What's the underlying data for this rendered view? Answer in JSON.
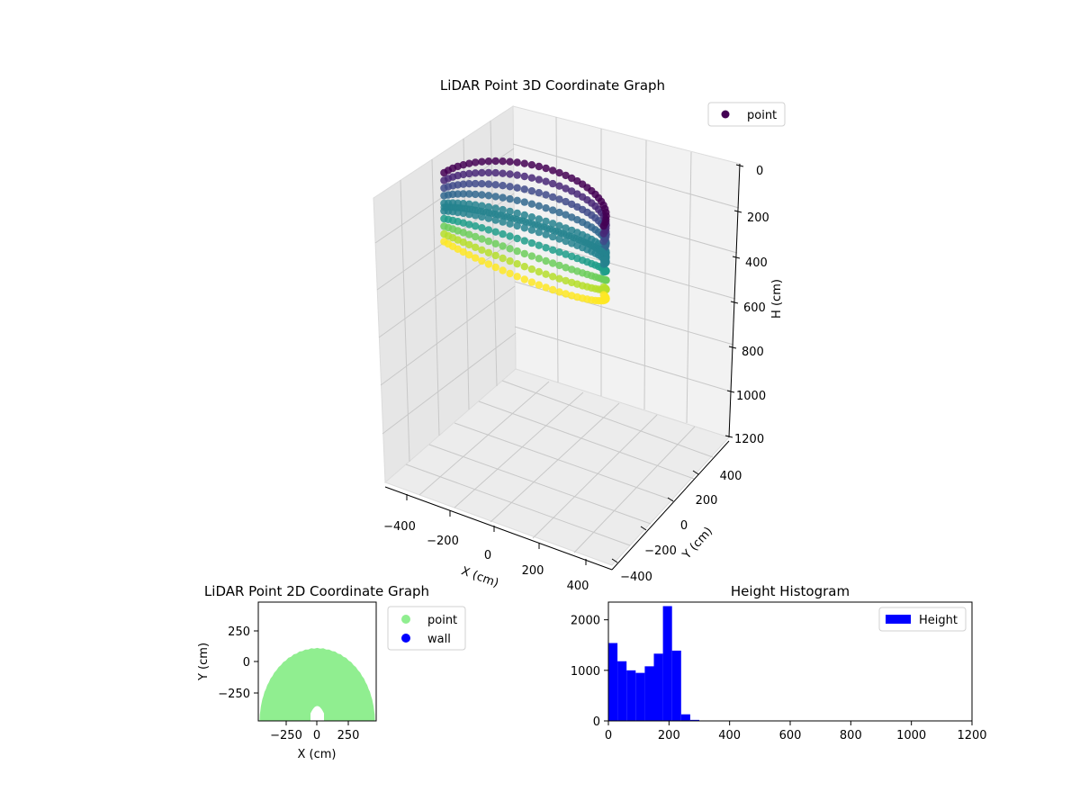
{
  "chart_data": [
    {
      "type": "scatter",
      "projection": "3d",
      "title": "LiDAR Point 3D Coordinate Graph",
      "xlabel": "X (cm)",
      "ylabel": "Y (cm)",
      "zlabel": "H (cm)",
      "x_ticks": [
        "−400",
        "−200",
        "0",
        "200",
        "400"
      ],
      "y_ticks": [
        "−400",
        "−200",
        "0",
        "200",
        "400"
      ],
      "z_ticks": [
        "0",
        "200",
        "400",
        "600",
        "800",
        "1000",
        "1200"
      ],
      "xlim": [
        -450,
        450
      ],
      "ylim": [
        -450,
        450
      ],
      "zlim": [
        0,
        1200
      ],
      "z_inverted": true,
      "grid": true,
      "legend": {
        "position": "top-right",
        "entries": [
          {
            "label": "point",
            "color": "#440154"
          }
        ]
      },
      "colormap": "viridis",
      "series": [
        {
          "name": "point",
          "description_shape": "dome-shaped ring of vertical scan columns around the sensor",
          "ring_radius_cm": 420,
          "height_range_cm": [
            0,
            500
          ]
        }
      ]
    },
    {
      "type": "scatter",
      "title": "LiDAR Point 2D Coordinate Graph",
      "xlabel": "X (cm)",
      "ylabel": "Y (cm)",
      "x_ticks": [
        "−250",
        "0",
        "250"
      ],
      "y_ticks": [
        "250",
        "0",
        "−250"
      ],
      "xlim": [
        -480,
        480
      ],
      "ylim": [
        -480,
        480
      ],
      "legend": {
        "position": "outside-right",
        "entries": [
          {
            "label": "point",
            "color": "#90ee90"
          },
          {
            "label": "wall",
            "color": "#0000ff"
          }
        ]
      },
      "series": [
        {
          "name": "point",
          "color": "#90ee90",
          "region": "filled half-disc, radius ~460, top near y=110"
        },
        {
          "name": "wall",
          "color": "#0000ff",
          "values": []
        }
      ]
    },
    {
      "type": "bar",
      "subtype": "histogram",
      "title": "Height Histogram",
      "x_ticks": [
        "0",
        "200",
        "400",
        "600",
        "800",
        "1000",
        "1200"
      ],
      "y_ticks": [
        "0",
        "1000",
        "2000"
      ],
      "xlim": [
        0,
        1200
      ],
      "ylim": [
        0,
        2350
      ],
      "bin_width": 30,
      "bins": [
        {
          "x0": 0,
          "count": 1540
        },
        {
          "x0": 30,
          "count": 1180
        },
        {
          "x0": 60,
          "count": 1000
        },
        {
          "x0": 90,
          "count": 950
        },
        {
          "x0": 120,
          "count": 1080
        },
        {
          "x0": 150,
          "count": 1330
        },
        {
          "x0": 180,
          "count": 2270
        },
        {
          "x0": 210,
          "count": 1390
        },
        {
          "x0": 240,
          "count": 130
        },
        {
          "x0": 270,
          "count": 20
        },
        {
          "x0": 300,
          "count": 3
        }
      ],
      "color": "#0000ff",
      "legend": {
        "position": "top-right",
        "entries": [
          {
            "label": "Height",
            "color": "#0000ff"
          }
        ]
      }
    }
  ]
}
